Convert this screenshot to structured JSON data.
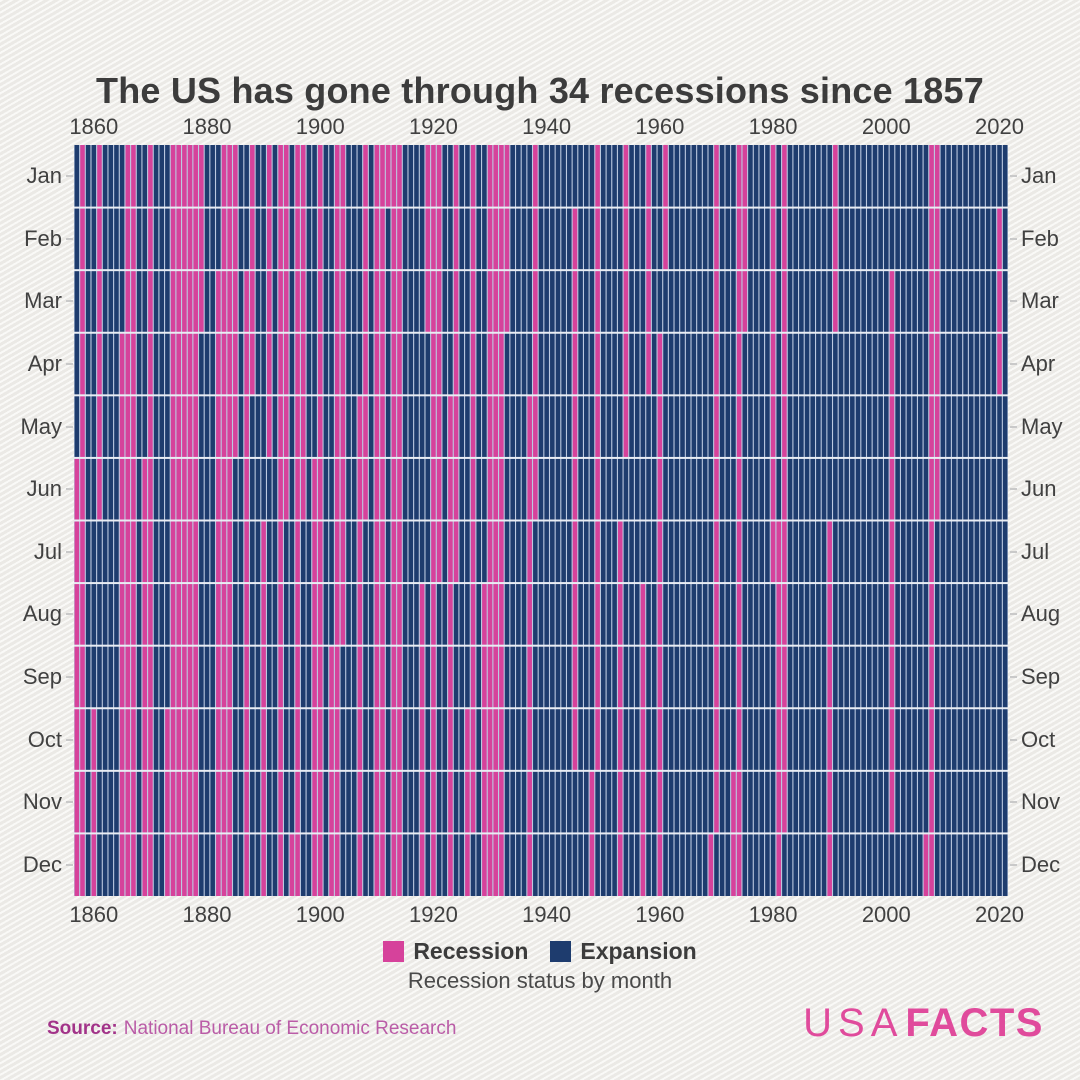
{
  "title": "The US has gone through 34 recessions since 1857",
  "axis": {
    "year_ticks": [
      1860,
      1880,
      1900,
      1920,
      1940,
      1960,
      1980,
      2000,
      2020
    ],
    "months": [
      "Jan",
      "Feb",
      "Mar",
      "Apr",
      "May",
      "Jun",
      "Jul",
      "Aug",
      "Sep",
      "Oct",
      "Nov",
      "Dec"
    ]
  },
  "legend": {
    "items": [
      {
        "label": "Recession",
        "color": "#d6429b"
      },
      {
        "label": "Expansion",
        "color": "#1e3c6e"
      }
    ],
    "caption": "Recession status by month"
  },
  "source": {
    "label": "Source:",
    "text": "National Bureau of Economic Research"
  },
  "logo": {
    "part1": "USA",
    "part2": "FACTS"
  },
  "chart_data": {
    "type": "heatmap",
    "title": "The US has gone through 34 recessions since 1857",
    "x": {
      "label": "year",
      "range": [
        1857,
        2021
      ],
      "tick_years": [
        1860,
        1880,
        1900,
        1920,
        1940,
        1960,
        1980,
        2000,
        2020
      ],
      "ticks_shown": "top and bottom"
    },
    "y": {
      "label": "month",
      "categories": [
        "Jan",
        "Feb",
        "Mar",
        "Apr",
        "May",
        "Jun",
        "Jul",
        "Aug",
        "Sep",
        "Oct",
        "Nov",
        "Dec"
      ],
      "labels_shown": "left and right"
    },
    "cell_encoding": "1 month per cell; pink = recession, navy = expansion",
    "recession_count": 34,
    "recession_periods": [
      [
        "1857-06",
        "1858-12"
      ],
      [
        "1860-10",
        "1861-06"
      ],
      [
        "1865-04",
        "1867-12"
      ],
      [
        "1869-06",
        "1870-12"
      ],
      [
        "1873-10",
        "1879-03"
      ],
      [
        "1882-03",
        "1885-05"
      ],
      [
        "1887-03",
        "1888-04"
      ],
      [
        "1890-07",
        "1891-05"
      ],
      [
        "1893-01",
        "1894-06"
      ],
      [
        "1895-12",
        "1897-06"
      ],
      [
        "1899-06",
        "1900-12"
      ],
      [
        "1902-09",
        "1904-08"
      ],
      [
        "1907-05",
        "1908-06"
      ],
      [
        "1910-01",
        "1912-01"
      ],
      [
        "1913-01",
        "1914-12"
      ],
      [
        "1918-08",
        "1919-03"
      ],
      [
        "1920-01",
        "1921-07"
      ],
      [
        "1923-05",
        "1924-07"
      ],
      [
        "1926-10",
        "1927-11"
      ],
      [
        "1929-08",
        "1933-03"
      ],
      [
        "1937-05",
        "1938-06"
      ],
      [
        "1945-02",
        "1945-10"
      ],
      [
        "1948-11",
        "1949-10"
      ],
      [
        "1953-07",
        "1954-05"
      ],
      [
        "1957-08",
        "1958-04"
      ],
      [
        "1960-04",
        "1961-02"
      ],
      [
        "1969-12",
        "1970-11"
      ],
      [
        "1973-11",
        "1975-03"
      ],
      [
        "1980-01",
        "1980-07"
      ],
      [
        "1981-07",
        "1982-11"
      ],
      [
        "1990-07",
        "1991-03"
      ],
      [
        "2001-03",
        "2001-11"
      ],
      [
        "2007-12",
        "2009-06"
      ],
      [
        "2020-02",
        "2020-04"
      ]
    ],
    "colors": {
      "recession": "#d6429b",
      "expansion": "#1e3c6e",
      "column_gap": "#bcc9e0",
      "row_gridline": "#e9edf4"
    },
    "legend_position": "bottom center",
    "grid": true
  }
}
